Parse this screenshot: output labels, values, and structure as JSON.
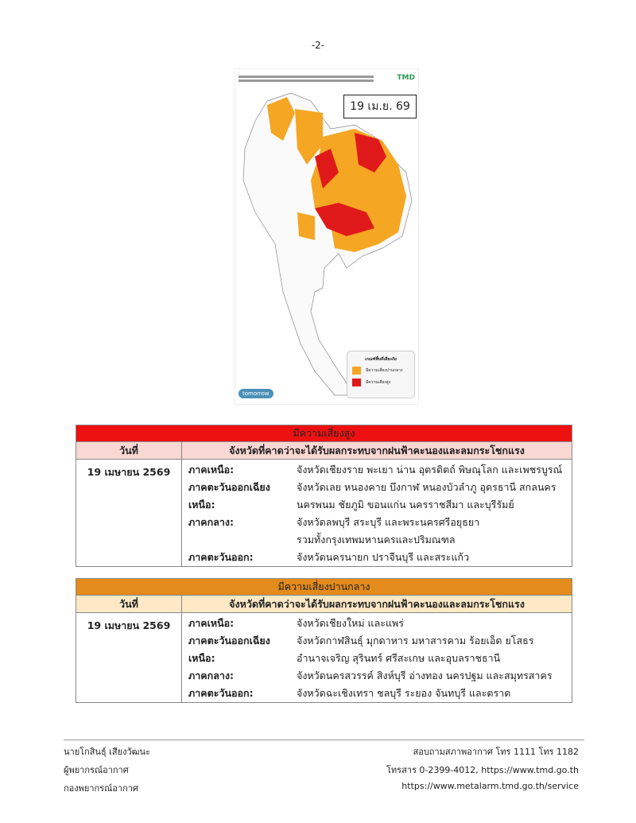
{
  "page_number": "-2-",
  "map": {
    "date_label": "19 เม.ย. 69",
    "logo": "TMD",
    "legend": {
      "title": "เกณฑ์พื้นที่เสี่ยงภัย",
      "items": [
        {
          "label": "มีความเสี่ยงปานกลาง",
          "color": "#f5a623"
        },
        {
          "label": "มีความเสี่ยงสูง",
          "color": "#e01a1a"
        }
      ]
    },
    "watermark": "tomorrow"
  },
  "high_risk": {
    "title": "มีความเสี่ยงสูง",
    "color": "#ee1111",
    "subheader_color": "#f9d7d2",
    "col_date": "วันที่",
    "col_provinces": "จังหวัดที่คาดว่าจะได้รับผลกระทบจากฝนฟ้าคะนองและลมกระโชกแรง",
    "date": "19 เมษายน 2569",
    "regions": [
      {
        "label": "ภาคเหนือ:",
        "lines": [
          "จังหวัดเชียงราย พะเยา น่าน อุตรดิตถ์ พิษณุโลก และเพชรบูรณ์"
        ]
      },
      {
        "label": "ภาคตะวันออกเฉียงเหนือ:",
        "lines": [
          "จังหวัดเลย หนองคาย บึงกาฬ หนองบัวลำภู อุดรธานี สกลนคร",
          "นครพนม ชัยภูมิ ขอนแก่น นครราชสีมา และบุรีรัมย์"
        ]
      },
      {
        "label": "ภาคกลาง:",
        "lines": [
          "จังหวัดลพบุรี สระบุรี และพระนครศรีอยุธยา",
          "รวมทั้งกรุงเทพมหานครและปริมณฑล"
        ]
      },
      {
        "label": "ภาคตะวันออก:",
        "lines": [
          "จังหวัดนครนายก ปราจีนบุรี และสระแก้ว"
        ]
      }
    ]
  },
  "moderate_risk": {
    "title": "มีความเสี่ยงปานกลาง",
    "color": "#e38b1c",
    "subheader_color": "#fde9c6",
    "col_date": "วันที่",
    "col_provinces": "จังหวัดที่คาดว่าจะได้รับผลกระทบจากฝนฟ้าคะนองและลมกระโชกแรง",
    "date": "19 เมษายน 2569",
    "regions": [
      {
        "label": "ภาคเหนือ:",
        "lines": [
          "จังหวัดเชียงใหม่ และแพร่"
        ]
      },
      {
        "label": "ภาคตะวันออกเฉียงเหนือ:",
        "lines": [
          "จังหวัดกาฬสินธุ์ มุกดาหาร มหาสารคาม ร้อยเอ็ด ยโสธร",
          "อำนาจเจริญ สุรินทร์ ศรีสะเกษ และอุบลราชธานี"
        ]
      },
      {
        "label": "ภาคกลาง:",
        "lines": [
          "จังหวัดนครสวรรค์ สิงห์บุรี อ่างทอง นครปฐม และสมุทรสาคร"
        ]
      },
      {
        "label": "ภาคตะวันออก:",
        "lines": [
          "จังหวัดฉะเชิงเทรา ชลบุรี ระยอง จันทบุรี และตราด"
        ]
      }
    ]
  },
  "footer": {
    "left": [
      "นายโกสินธุ์ เสียงวัฒนะ",
      "ผู้พยากรณ์อากาศ",
      "กองพยากรณ์อากาศ"
    ],
    "right": [
      "สอบถามสภาพอากาศ โทร 1111 โทร 1182",
      "โทรสาร 0-2399-4012, https://www.tmd.go.th",
      "https://www.metalarm.tmd.go.th/service"
    ]
  }
}
